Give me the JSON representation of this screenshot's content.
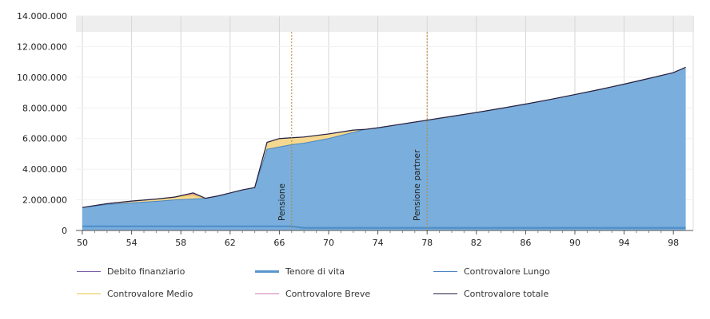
{
  "chart_data": {
    "type": "area",
    "xlim": [
      50,
      99
    ],
    "ylim": [
      0,
      14000000
    ],
    "x_ticks": [
      50,
      54,
      58,
      62,
      66,
      70,
      74,
      78,
      82,
      86,
      90,
      94,
      98
    ],
    "y_ticks": [
      0,
      2000000,
      4000000,
      6000000,
      8000000,
      10000000,
      12000000,
      14000000
    ],
    "y_tick_labels": [
      "0",
      "2.000.000",
      "4.000.000",
      "6.000.000",
      "8.000.000",
      "10.000.000",
      "12.000.000",
      "14.000.000"
    ],
    "grid": "vertical",
    "legend_position": "bottom",
    "x": [
      50,
      52,
      54,
      56,
      57.5,
      59,
      60,
      61,
      62,
      63,
      64,
      65,
      66,
      67,
      68,
      70,
      72,
      73,
      74,
      76,
      78,
      80,
      82,
      84,
      86,
      88,
      90,
      92,
      94,
      96,
      98,
      99
    ],
    "series": [
      {
        "name": "Controvalore Lungo",
        "color": "#7aaedc",
        "line": "#4a86c0",
        "values": [
          1500000,
          1700000,
          1800000,
          1900000,
          2000000,
          2050000,
          2100000,
          2250000,
          2450000,
          2650000,
          2800000,
          5300000,
          5450000,
          5600000,
          5700000,
          6000000,
          6400000,
          6600000,
          6700000,
          6950000,
          7200000,
          7450000,
          7700000,
          7970000,
          8250000,
          8550000,
          8870000,
          9200000,
          9550000,
          9920000,
          10300000,
          10650000
        ]
      },
      {
        "name": "Controvalore Medio",
        "color": "#f5d890",
        "line": "#e8c84a",
        "values": [
          0,
          50000,
          120000,
          150000,
          180000,
          250000,
          0,
          0,
          0,
          0,
          0,
          450000,
          550000,
          450000,
          400000,
          300000,
          150000,
          0,
          0,
          0,
          0,
          0,
          0,
          0,
          0,
          0,
          0,
          0,
          0,
          0,
          0,
          0
        ]
      },
      {
        "name": "Controvalore Breve",
        "color": "#e8a0b0",
        "line": "#cc7fb0",
        "values": [
          0,
          0,
          0,
          0,
          0,
          150000,
          0,
          0,
          0,
          0,
          0,
          0,
          0,
          0,
          0,
          0,
          0,
          0,
          0,
          0,
          0,
          0,
          0,
          0,
          0,
          0,
          0,
          0,
          0,
          0,
          0,
          0
        ]
      },
      {
        "name": "Tenore di vita",
        "color": "#4f8fc9",
        "values": [
          270000,
          270000,
          270000,
          270000,
          270000,
          270000,
          270000,
          270000,
          270000,
          270000,
          270000,
          270000,
          270000,
          270000,
          170000,
          170000,
          170000,
          170000,
          170000,
          170000,
          170000,
          170000,
          170000,
          170000,
          170000,
          170000,
          170000,
          170000,
          170000,
          170000,
          170000,
          170000
        ]
      },
      {
        "name": "Controvalore totale",
        "color": "#222244"
      },
      {
        "name": "Debito finanziario",
        "color": "#7b5fa8"
      }
    ],
    "markers": [
      {
        "x": 67,
        "label": "Pensione",
        "color": "#b8862e"
      },
      {
        "x": 78,
        "label": "Pensione partner",
        "color": "#b8862e"
      }
    ]
  },
  "legend": [
    {
      "label": "Debito finanziario",
      "color": "#7b5fa8",
      "thick": false
    },
    {
      "label": "Tenore di vita",
      "color": "#5b95cf",
      "thick": true
    },
    {
      "label": "Controvalore Lungo",
      "color": "#4a86c0",
      "thick": false
    },
    {
      "label": "Controvalore Medio",
      "color": "#e8c84a",
      "thick": false
    },
    {
      "label": "Controvalore Breve",
      "color": "#cc7fb0",
      "thick": false
    },
    {
      "label": "Controvalore totale",
      "color": "#222244",
      "thick": false
    }
  ]
}
